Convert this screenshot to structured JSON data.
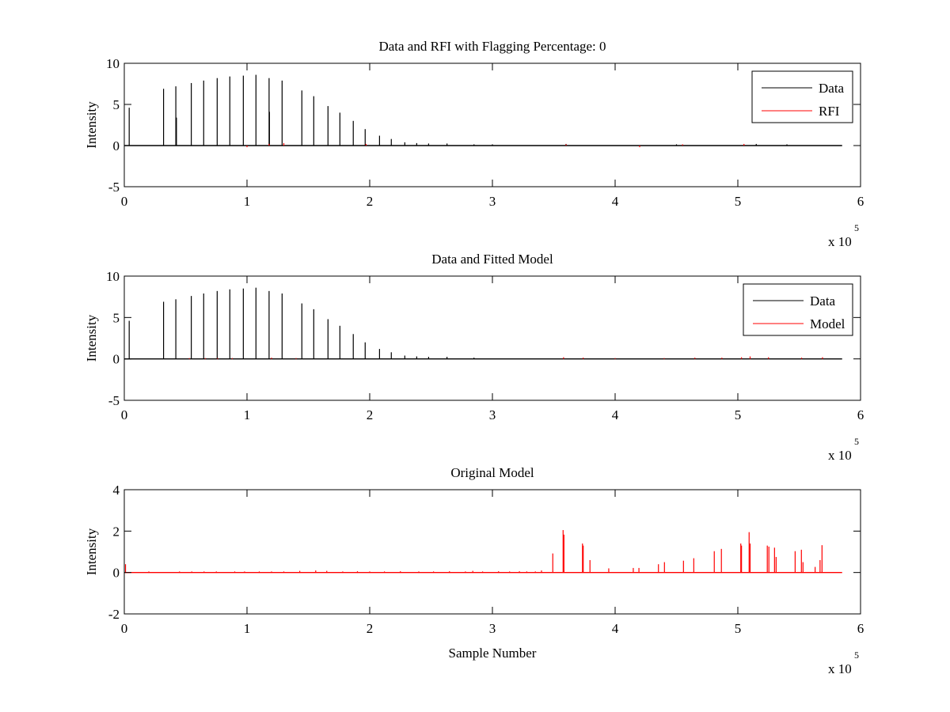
{
  "chart_data": [
    {
      "type": "line",
      "title": "Data and RFI with Flagging Percentage: 0",
      "xlabel": "",
      "ylabel": "Intensity",
      "xlim": [
        0,
        600000
      ],
      "ylim": [
        -5,
        10
      ],
      "xticks": [
        "0",
        "1",
        "2",
        "3",
        "4",
        "5",
        "6"
      ],
      "yticks": [
        "-5",
        "0",
        "5",
        "10"
      ],
      "x_exponent_label": "x 10",
      "x_exponent": "5",
      "legend": {
        "placement": "top-right",
        "entries": [
          "Data",
          "RFI"
        ]
      },
      "series": [
        {
          "name": "Data",
          "color": "#000000",
          "baseline_end": 585000,
          "spikes": [
            [
              4000,
              4.6
            ],
            [
              32000,
              6.9
            ],
            [
              42000,
              7.2
            ],
            [
              42500,
              3.4
            ],
            [
              54600,
              7.6
            ],
            [
              64700,
              7.9
            ],
            [
              75700,
              8.2
            ],
            [
              86000,
              8.4
            ],
            [
              97000,
              8.5
            ],
            [
              107300,
              8.6
            ],
            [
              118000,
              8.2
            ],
            [
              118300,
              4.1
            ],
            [
              128600,
              7.9
            ],
            [
              144700,
              6.7
            ],
            [
              154400,
              6.0
            ],
            [
              166000,
              4.8
            ],
            [
              175700,
              4.0
            ],
            [
              186600,
              3.0
            ],
            [
              196300,
              2.0
            ],
            [
              208000,
              1.2
            ],
            [
              217600,
              0.8
            ],
            [
              228600,
              0.4
            ],
            [
              238300,
              0.3
            ],
            [
              248000,
              0.25
            ],
            [
              263000,
              0.25
            ],
            [
              285000,
              0.15
            ],
            [
              300000,
              0.15
            ],
            [
              360000,
              0.2
            ],
            [
              450000,
              0.15
            ],
            [
              515000,
              0.2
            ],
            [
              540000,
              0.15
            ]
          ]
        },
        {
          "name": "RFI",
          "color": "#ff0000",
          "spikes": [
            [
              100000,
              -0.2
            ],
            [
              118000,
              0.2
            ],
            [
              130000,
              0.3
            ],
            [
              197000,
              0.2
            ],
            [
              360000,
              0.15
            ],
            [
              420000,
              -0.2
            ],
            [
              455000,
              0.15
            ],
            [
              505000,
              0.2
            ]
          ]
        }
      ]
    },
    {
      "type": "line",
      "title": "Data and Fitted Model",
      "xlabel": "",
      "ylabel": "Intensity",
      "xlim": [
        0,
        600000
      ],
      "ylim": [
        -5,
        10
      ],
      "xticks": [
        "0",
        "1",
        "2",
        "3",
        "4",
        "5",
        "6"
      ],
      "yticks": [
        "-5",
        "0",
        "5",
        "10"
      ],
      "x_exponent_label": "x 10",
      "x_exponent": "5",
      "legend": {
        "placement": "top-right",
        "entries": [
          "Data",
          "Model"
        ]
      },
      "series": [
        {
          "name": "Data",
          "color": "#000000",
          "baseline_end": 585000,
          "spikes": [
            [
              4000,
              4.6
            ],
            [
              32000,
              6.9
            ],
            [
              42000,
              7.2
            ],
            [
              54600,
              7.6
            ],
            [
              64700,
              7.9
            ],
            [
              75700,
              8.2
            ],
            [
              86000,
              8.4
            ],
            [
              97000,
              8.5
            ],
            [
              107300,
              8.6
            ],
            [
              118000,
              8.2
            ],
            [
              128600,
              7.9
            ],
            [
              144700,
              6.7
            ],
            [
              154400,
              6.0
            ],
            [
              166000,
              4.8
            ],
            [
              175700,
              4.0
            ],
            [
              186600,
              3.0
            ],
            [
              196300,
              2.0
            ],
            [
              208000,
              1.2
            ],
            [
              217600,
              0.8
            ],
            [
              228600,
              0.4
            ],
            [
              238300,
              0.3
            ],
            [
              248000,
              0.25
            ],
            [
              263000,
              0.25
            ],
            [
              285000,
              0.15
            ]
          ]
        },
        {
          "name": "Model",
          "color": "#ff0000",
          "spikes": [
            [
              53000,
              0.1
            ],
            [
              66000,
              0.1
            ],
            [
              76000,
              0.1
            ],
            [
              88000,
              0.1
            ],
            [
              120000,
              0.15
            ],
            [
              140000,
              0.1
            ],
            [
              358000,
              0.2
            ],
            [
              374000,
              0.15
            ],
            [
              400000,
              0.1
            ],
            [
              440000,
              0.1
            ],
            [
              465000,
              0.15
            ],
            [
              487000,
              0.15
            ],
            [
              503000,
              0.2
            ],
            [
              510000,
              0.3
            ],
            [
              525000,
              0.2
            ],
            [
              552000,
              0.15
            ],
            [
              569000,
              0.2
            ]
          ]
        }
      ]
    },
    {
      "type": "line",
      "title": "Original Model",
      "xlabel": "Sample Number",
      "ylabel": "Intensity",
      "xlim": [
        0,
        600000
      ],
      "ylim": [
        -2,
        4
      ],
      "xticks": [
        "0",
        "1",
        "2",
        "3",
        "4",
        "5",
        "6"
      ],
      "yticks": [
        "-2",
        "0",
        "2",
        "4"
      ],
      "x_exponent_label": "x 10",
      "x_exponent": "5",
      "series": [
        {
          "name": "Model",
          "color": "#ff0000",
          "baseline_end": 585000,
          "spikes": [
            [
              1000,
              0.4
            ],
            [
              20000,
              0.05
            ],
            [
              45000,
              0.05
            ],
            [
              55000,
              0.05
            ],
            [
              65000,
              0.05
            ],
            [
              75000,
              0.05
            ],
            [
              90000,
              0.05
            ],
            [
              98000,
              0.05
            ],
            [
              110000,
              0.05
            ],
            [
              120000,
              0.05
            ],
            [
              130000,
              0.05
            ],
            [
              143000,
              0.08
            ],
            [
              156000,
              0.1
            ],
            [
              165000,
              0.08
            ],
            [
              178000,
              0.05
            ],
            [
              190000,
              0.06
            ],
            [
              200000,
              0.05
            ],
            [
              212000,
              0.05
            ],
            [
              225000,
              0.06
            ],
            [
              240000,
              0.05
            ],
            [
              252000,
              0.05
            ],
            [
              265000,
              0.06
            ],
            [
              278000,
              0.05
            ],
            [
              284000,
              0.08
            ],
            [
              292000,
              0.05
            ],
            [
              305000,
              0.06
            ],
            [
              314000,
              0.05
            ],
            [
              322000,
              0.06
            ],
            [
              328000,
              0.05
            ],
            [
              335000,
              0.05
            ],
            [
              340000,
              0.1
            ],
            [
              349200,
              0.92
            ],
            [
              357600,
              2.05
            ],
            [
              358300,
              1.83
            ],
            [
              373400,
              1.4
            ],
            [
              374000,
              1.3
            ],
            [
              379500,
              0.6
            ],
            [
              394800,
              0.2
            ],
            [
              414800,
              0.22
            ],
            [
              419400,
              0.22
            ],
            [
              435300,
              0.4
            ],
            [
              440200,
              0.5
            ],
            [
              455700,
              0.57
            ],
            [
              464100,
              0.69
            ],
            [
              480800,
              1.03
            ],
            [
              486600,
              1.14
            ],
            [
              502400,
              1.4
            ],
            [
              503000,
              1.3
            ],
            [
              509200,
              1.95
            ],
            [
              510000,
              1.4
            ],
            [
              524000,
              1.3
            ],
            [
              525300,
              1.25
            ],
            [
              529900,
              1.2
            ],
            [
              531200,
              0.75
            ],
            [
              546700,
              1.03
            ],
            [
              551800,
              1.1
            ],
            [
              553100,
              0.5
            ],
            [
              563000,
              0.27
            ],
            [
              567000,
              0.6
            ],
            [
              568600,
              1.32
            ]
          ]
        }
      ]
    }
  ]
}
